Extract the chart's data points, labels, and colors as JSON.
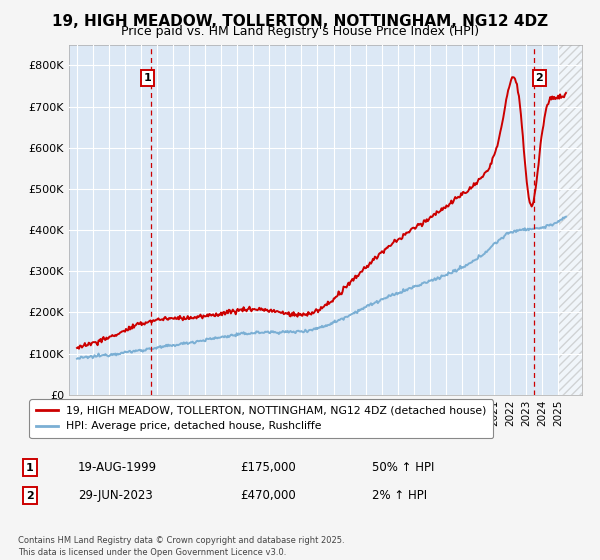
{
  "title": "19, HIGH MEADOW, TOLLERTON, NOTTINGHAM, NG12 4DZ",
  "subtitle": "Price paid vs. HM Land Registry's House Price Index (HPI)",
  "xlim": [
    1994.5,
    2026.5
  ],
  "ylim": [
    0,
    850000
  ],
  "yticks": [
    0,
    100000,
    200000,
    300000,
    400000,
    500000,
    600000,
    700000,
    800000
  ],
  "ytick_labels": [
    "£0",
    "£100K",
    "£200K",
    "£300K",
    "£400K",
    "£500K",
    "£600K",
    "£700K",
    "£800K"
  ],
  "xticks": [
    1995,
    1996,
    1997,
    1998,
    1999,
    2000,
    2001,
    2002,
    2003,
    2004,
    2005,
    2006,
    2007,
    2008,
    2009,
    2010,
    2011,
    2012,
    2013,
    2014,
    2015,
    2016,
    2017,
    2018,
    2019,
    2020,
    2021,
    2022,
    2023,
    2024,
    2025
  ],
  "sale1_x": 1999.63,
  "sale1_y": 175000,
  "sale2_x": 2023.49,
  "sale2_y": 470000,
  "hatch_start": 2025.0,
  "legend_line1": "19, HIGH MEADOW, TOLLERTON, NOTTINGHAM, NG12 4DZ (detached house)",
  "legend_line2": "HPI: Average price, detached house, Rushcliffe",
  "annotation1_date": "19-AUG-1999",
  "annotation1_price": "£175,000",
  "annotation1_hpi": "50% ↑ HPI",
  "annotation2_date": "29-JUN-2023",
  "annotation2_price": "£470,000",
  "annotation2_hpi": "2% ↑ HPI",
  "footer": "Contains HM Land Registry data © Crown copyright and database right 2025.\nThis data is licensed under the Open Government Licence v3.0.",
  "hpi_color": "#7bafd4",
  "price_color": "#cc0000",
  "bg_color": "#dce8f5",
  "fig_bg": "#f5f5f5",
  "grid_color": "#ffffff",
  "dashed_color": "#cc0000",
  "title_fontsize": 11,
  "subtitle_fontsize": 9
}
